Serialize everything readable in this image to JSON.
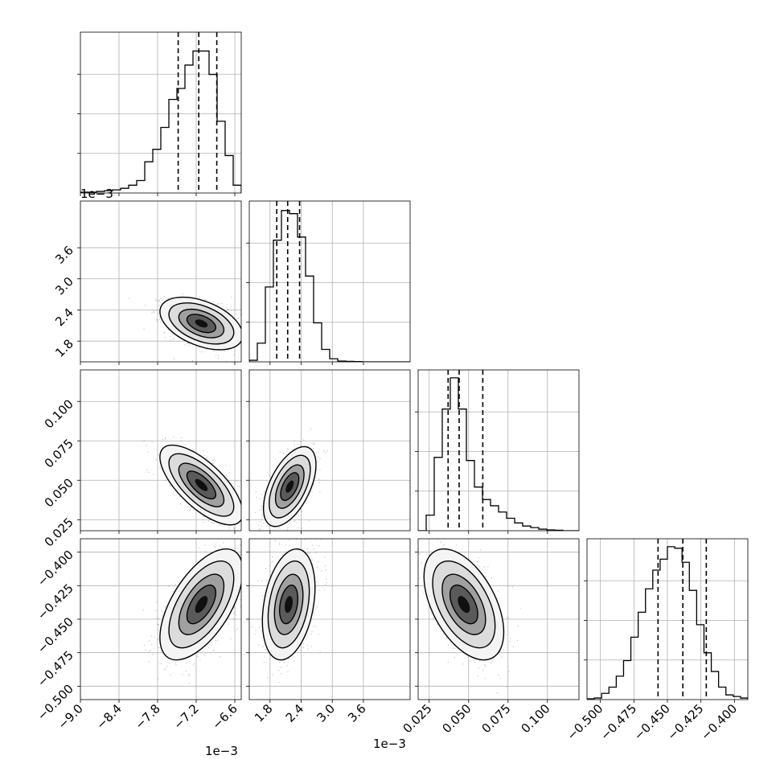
{
  "chart_data": {
    "type": "corner",
    "grid": true,
    "offset_labels": {
      "row1_y": "1e−3",
      "col0_x": "1e−3",
      "col1_x": "1e−3"
    },
    "params": [
      {
        "range": [
          -9.0,
          -6.5
        ],
        "ticks": [
          "−9.0",
          "−8.4",
          "−7.8",
          "−7.2",
          "−6.6"
        ],
        "tick_values": [
          -9.0,
          -8.4,
          -7.8,
          -7.2,
          -6.6
        ],
        "quantiles": [
          -7.48,
          -7.16,
          -6.88
        ]
      },
      {
        "range": [
          1.4,
          4.5
        ],
        "ticks": [
          "1.8",
          "2.4",
          "3.0",
          "3.6"
        ],
        "tick_values": [
          1.8,
          2.4,
          3.0,
          3.6
        ],
        "quantiles": [
          1.93,
          2.14,
          2.37
        ]
      },
      {
        "range": [
          0.018,
          0.12
        ],
        "ticks": [
          "0.025",
          "0.050",
          "0.075",
          "0.100"
        ],
        "tick_values": [
          0.025,
          0.05,
          0.075,
          0.1
        ],
        "quantiles": [
          0.037,
          0.044,
          0.059
        ]
      },
      {
        "range": [
          -0.51,
          -0.39
        ],
        "ticks": [
          "−0.500",
          "−0.475",
          "−0.450",
          "−0.425",
          "−0.400"
        ],
        "tick_values": [
          -0.5,
          -0.475,
          -0.45,
          -0.425,
          -0.4
        ],
        "quantiles": [
          -0.457,
          -0.4385,
          -0.421
        ]
      }
    ],
    "histograms": [
      {
        "counts": [
          0.005,
          0.005,
          0.01,
          0.015,
          0.02,
          0.03,
          0.05,
          0.08,
          0.2,
          0.28,
          0.42,
          0.6,
          0.67,
          0.82,
          0.91,
          0.91,
          0.76,
          0.46,
          0.24,
          0.05
        ]
      },
      {
        "counts": [
          0.01,
          0.12,
          0.48,
          0.78,
          0.97,
          0.95,
          0.8,
          0.55,
          0.25,
          0.08,
          0.02,
          0.005,
          0.003,
          0.002,
          0,
          0,
          0,
          0,
          0,
          0
        ]
      },
      {
        "counts": [
          0,
          0.1,
          0.47,
          0.78,
          0.98,
          0.78,
          0.45,
          0.28,
          0.2,
          0.16,
          0.12,
          0.08,
          0.05,
          0.03,
          0.02,
          0.01,
          0.005,
          0.003,
          0,
          0
        ]
      },
      {
        "counts": [
          0.005,
          0.01,
          0.04,
          0.08,
          0.15,
          0.25,
          0.4,
          0.56,
          0.71,
          0.83,
          0.9,
          0.98,
          0.97,
          0.88,
          0.7,
          0.48,
          0.3,
          0.18,
          0.08,
          0.03,
          0.02,
          0.01
        ]
      }
    ],
    "pairs": [
      {
        "row": 1,
        "col": 0,
        "mean": [
          -7.12,
          2.14
        ],
        "sd": [
          0.28,
          0.22
        ],
        "rho": -0.45
      },
      {
        "row": 2,
        "col": 0,
        "mean": [
          -7.12,
          0.047
        ],
        "sd": [
          0.28,
          0.011
        ],
        "rho": -0.7
      },
      {
        "row": 2,
        "col": 1,
        "mean": [
          2.18,
          0.046
        ],
        "sd": [
          0.22,
          0.011
        ],
        "rho": 0.55
      },
      {
        "row": 3,
        "col": 0,
        "mean": [
          -7.12,
          -0.439
        ],
        "sd": [
          0.28,
          0.018
        ],
        "rho": 0.6
      },
      {
        "row": 3,
        "col": 1,
        "mean": [
          2.16,
          -0.439
        ],
        "sd": [
          0.22,
          0.018
        ],
        "rho": 0.3
      },
      {
        "row": 3,
        "col": 2,
        "mean": [
          0.047,
          -0.439
        ],
        "sd": [
          0.011,
          0.018
        ],
        "rho": -0.5
      }
    ]
  }
}
